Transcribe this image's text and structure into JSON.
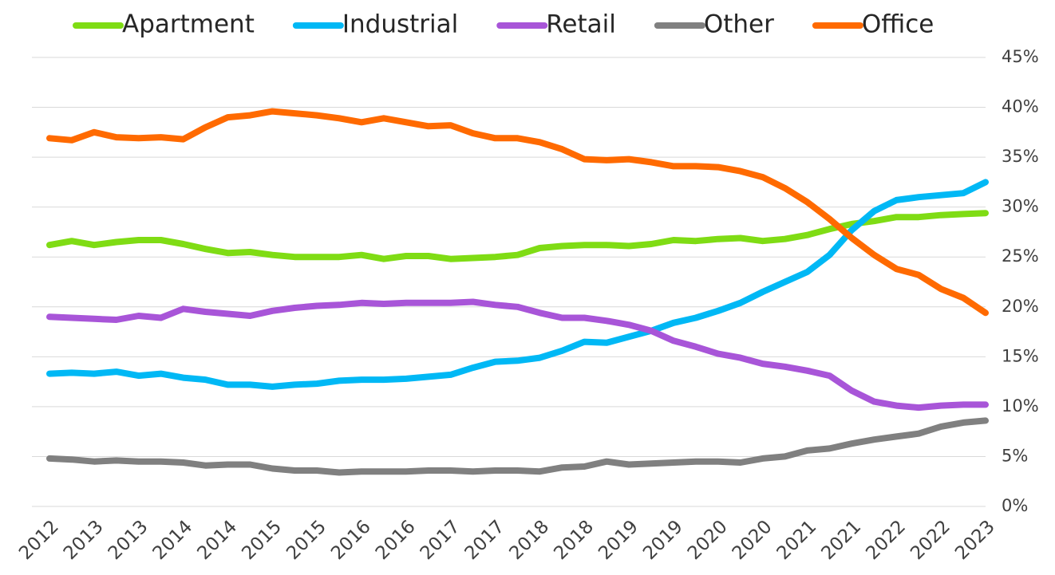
{
  "chart_data": {
    "type": "line",
    "categories": [
      "2012",
      null,
      "2013",
      null,
      "2013",
      null,
      "2014",
      null,
      "2014",
      null,
      "2015",
      null,
      "2015",
      null,
      "2016",
      null,
      "2016",
      null,
      "2017",
      null,
      "2017",
      null,
      "2018",
      null,
      "2018",
      null,
      "2019",
      null,
      "2019",
      null,
      "2020",
      null,
      "2020",
      null,
      "2021",
      null,
      "2021",
      null,
      "2022",
      null,
      "2022",
      null,
      "2023"
    ],
    "series": [
      {
        "name": "Apartment",
        "color": "#7fdc14",
        "values": [
          26.2,
          26.6,
          26.2,
          26.5,
          26.7,
          26.7,
          26.3,
          25.8,
          25.4,
          25.5,
          25.2,
          25.0,
          25.0,
          25.0,
          25.2,
          24.8,
          25.1,
          25.1,
          24.8,
          24.9,
          25.0,
          25.2,
          25.9,
          26.1,
          26.2,
          26.2,
          26.1,
          26.3,
          26.7,
          26.6,
          26.8,
          26.9,
          26.6,
          26.8,
          27.2,
          27.8,
          28.3,
          28.6,
          29.0,
          29.0,
          29.2,
          29.3,
          29.4
        ]
      },
      {
        "name": "Industrial",
        "color": "#00b8f5",
        "values": [
          13.3,
          13.4,
          13.3,
          13.5,
          13.1,
          13.3,
          12.9,
          12.7,
          12.2,
          12.2,
          12.0,
          12.2,
          12.3,
          12.6,
          12.7,
          12.7,
          12.8,
          13.0,
          13.2,
          13.9,
          14.5,
          14.6,
          14.9,
          15.6,
          16.5,
          16.4,
          17.0,
          17.6,
          18.4,
          18.9,
          19.6,
          20.4,
          21.5,
          22.5,
          23.5,
          25.2,
          27.7,
          29.6,
          30.7,
          31.0,
          31.2,
          31.4,
          32.5
        ]
      },
      {
        "name": "Retail",
        "color": "#a855d8",
        "values": [
          19.0,
          18.9,
          18.8,
          18.7,
          19.1,
          18.9,
          19.8,
          19.5,
          19.3,
          19.1,
          19.6,
          19.9,
          20.1,
          20.2,
          20.4,
          20.3,
          20.4,
          20.4,
          20.4,
          20.5,
          20.2,
          20.0,
          19.4,
          18.9,
          18.9,
          18.6,
          18.2,
          17.6,
          16.6,
          16.0,
          15.3,
          14.9,
          14.3,
          14.0,
          13.6,
          13.1,
          11.6,
          10.5,
          10.1,
          9.9,
          10.1,
          10.2,
          10.2
        ]
      },
      {
        "name": "Other",
        "color": "#808080",
        "values": [
          4.8,
          4.7,
          4.5,
          4.6,
          4.5,
          4.5,
          4.4,
          4.1,
          4.2,
          4.2,
          3.8,
          3.6,
          3.6,
          3.4,
          3.5,
          3.5,
          3.5,
          3.6,
          3.6,
          3.5,
          3.6,
          3.6,
          3.5,
          3.9,
          4.0,
          4.5,
          4.2,
          4.3,
          4.4,
          4.5,
          4.5,
          4.4,
          4.8,
          5.0,
          5.6,
          5.8,
          6.3,
          6.7,
          7.0,
          7.3,
          8.0,
          8.4,
          8.6
        ]
      },
      {
        "name": "Office",
        "color": "#ff6a00",
        "values": [
          36.9,
          36.7,
          37.5,
          37.0,
          36.9,
          37.0,
          36.8,
          38.0,
          39.0,
          39.2,
          39.6,
          39.4,
          39.2,
          38.9,
          38.5,
          38.9,
          38.5,
          38.1,
          38.2,
          37.4,
          36.9,
          36.9,
          36.5,
          35.8,
          34.8,
          34.7,
          34.8,
          34.5,
          34.1,
          34.1,
          34.0,
          33.6,
          33.0,
          31.9,
          30.5,
          28.8,
          26.9,
          25.2,
          23.8,
          23.2,
          21.8,
          20.9,
          19.4
        ]
      }
    ],
    "ylim": [
      0,
      45
    ],
    "yticks": [
      {
        "value": 0,
        "label": "0%"
      },
      {
        "value": 5,
        "label": "5%"
      },
      {
        "value": 10,
        "label": "10%"
      },
      {
        "value": 15,
        "label": "15%"
      },
      {
        "value": 20,
        "label": "20%"
      },
      {
        "value": 25,
        "label": "25%"
      },
      {
        "value": 30,
        "label": "30%"
      },
      {
        "value": 35,
        "label": "35%"
      },
      {
        "value": 40,
        "label": "40%"
      },
      {
        "value": 45,
        "label": "45%"
      }
    ],
    "yaxis_side": "right",
    "grid": true,
    "legend": "top"
  }
}
